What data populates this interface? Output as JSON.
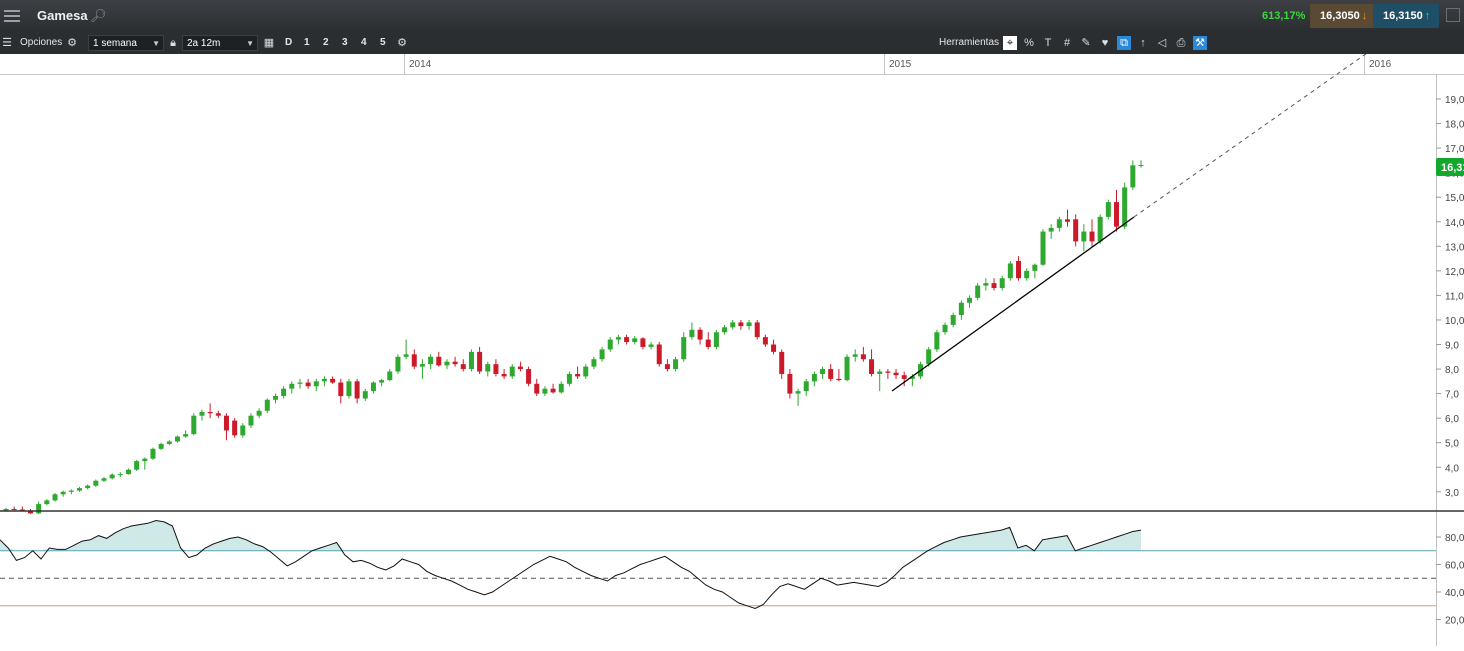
{
  "header": {
    "symbol": "Gamesa",
    "change_pct": "613,17%",
    "bid": "16,3050",
    "ask": "16,3150"
  },
  "toolbar": {
    "options_label": "Opciones",
    "interval": "1 semana",
    "range": "2a 12m",
    "periods": [
      "D",
      "1",
      "2",
      "3",
      "4",
      "5"
    ],
    "tools_label": "Herramientas",
    "icons": [
      "menu-icon",
      "gear-icon",
      "lock-icon",
      "calendar-icon",
      "settings-icon",
      "crosshair-icon",
      "percent-icon",
      "text-icon",
      "grid-icon",
      "pen-icon",
      "candle-icon",
      "compare-icon",
      "indicator-icon",
      "tag-icon",
      "print-icon",
      "tools-icon"
    ]
  },
  "colors": {
    "up": "#2ea82e",
    "down": "#cc1a2a",
    "rsi_fill": "#cfe8e8",
    "overbought_line": "#5ba3b5",
    "oversold_line": "#d59b74"
  },
  "chart_data": [
    {
      "type": "candlestick",
      "x_labels": [
        "2014",
        "2015",
        "2016"
      ],
      "y_ticks": [
        "19,0",
        "18,0",
        "17,0",
        "16,0",
        "15,0",
        "14,0",
        "13,0",
        "12,0",
        "11,0",
        "10,0",
        "9,0",
        "8,0",
        "7,0",
        "6,0",
        "5,0",
        "4,0",
        "3,0"
      ],
      "ylim": [
        2.5,
        19.6
      ],
      "last_price_label": "16,31",
      "candles": [
        {
          "o": 2.22,
          "h": 2.35,
          "l": 2.2,
          "c": 2.3
        },
        {
          "o": 2.3,
          "h": 2.4,
          "l": 2.25,
          "c": 2.28
        },
        {
          "o": 2.28,
          "h": 2.4,
          "l": 2.2,
          "c": 2.25
        },
        {
          "o": 2.2,
          "h": 2.3,
          "l": 2.1,
          "c": 2.12
        },
        {
          "o": 2.12,
          "h": 2.6,
          "l": 2.1,
          "c": 2.5
        },
        {
          "o": 2.5,
          "h": 2.7,
          "l": 2.45,
          "c": 2.65
        },
        {
          "o": 2.65,
          "h": 2.95,
          "l": 2.6,
          "c": 2.9
        },
        {
          "o": 2.9,
          "h": 3.05,
          "l": 2.8,
          "c": 3.0
        },
        {
          "o": 3.0,
          "h": 3.1,
          "l": 2.9,
          "c": 3.05
        },
        {
          "o": 3.05,
          "h": 3.2,
          "l": 3.0,
          "c": 3.15
        },
        {
          "o": 3.15,
          "h": 3.3,
          "l": 3.1,
          "c": 3.25
        },
        {
          "o": 3.25,
          "h": 3.5,
          "l": 3.2,
          "c": 3.45
        },
        {
          "o": 3.45,
          "h": 3.6,
          "l": 3.4,
          "c": 3.55
        },
        {
          "o": 3.55,
          "h": 3.75,
          "l": 3.5,
          "c": 3.7
        },
        {
          "o": 3.7,
          "h": 3.8,
          "l": 3.6,
          "c": 3.72
        },
        {
          "o": 3.72,
          "h": 3.95,
          "l": 3.7,
          "c": 3.9
        },
        {
          "o": 3.9,
          "h": 4.3,
          "l": 3.85,
          "c": 4.25
        },
        {
          "o": 4.25,
          "h": 4.4,
          "l": 3.9,
          "c": 4.35
        },
        {
          "o": 4.35,
          "h": 4.8,
          "l": 4.3,
          "c": 4.75
        },
        {
          "o": 4.75,
          "h": 5.0,
          "l": 4.7,
          "c": 4.95
        },
        {
          "o": 4.95,
          "h": 5.1,
          "l": 4.9,
          "c": 5.05
        },
        {
          "o": 5.05,
          "h": 5.3,
          "l": 5.0,
          "c": 5.25
        },
        {
          "o": 5.25,
          "h": 5.5,
          "l": 5.2,
          "c": 5.35
        },
        {
          "o": 5.35,
          "h": 6.2,
          "l": 5.3,
          "c": 6.1
        },
        {
          "o": 6.1,
          "h": 6.35,
          "l": 5.9,
          "c": 6.25
        },
        {
          "o": 6.25,
          "h": 6.6,
          "l": 6.0,
          "c": 6.2
        },
        {
          "o": 6.2,
          "h": 6.3,
          "l": 6.0,
          "c": 6.1
        },
        {
          "o": 6.1,
          "h": 6.2,
          "l": 5.1,
          "c": 5.5
        },
        {
          "o": 5.9,
          "h": 6.0,
          "l": 5.2,
          "c": 5.3
        },
        {
          "o": 5.3,
          "h": 5.8,
          "l": 5.2,
          "c": 5.7
        },
        {
          "o": 5.7,
          "h": 6.2,
          "l": 5.6,
          "c": 6.1
        },
        {
          "o": 6.1,
          "h": 6.4,
          "l": 6.0,
          "c": 6.3
        },
        {
          "o": 6.3,
          "h": 6.8,
          "l": 6.2,
          "c": 6.75
        },
        {
          "o": 6.75,
          "h": 7.0,
          "l": 6.6,
          "c": 6.9
        },
        {
          "o": 6.9,
          "h": 7.3,
          "l": 6.8,
          "c": 7.2
        },
        {
          "o": 7.2,
          "h": 7.5,
          "l": 7.0,
          "c": 7.4
        },
        {
          "o": 7.4,
          "h": 7.6,
          "l": 7.2,
          "c": 7.45
        },
        {
          "o": 7.45,
          "h": 7.6,
          "l": 7.2,
          "c": 7.3
        },
        {
          "o": 7.3,
          "h": 7.6,
          "l": 7.1,
          "c": 7.5
        },
        {
          "o": 7.5,
          "h": 7.7,
          "l": 7.3,
          "c": 7.6
        },
        {
          "o": 7.6,
          "h": 7.7,
          "l": 7.4,
          "c": 7.45
        },
        {
          "o": 7.45,
          "h": 7.6,
          "l": 6.6,
          "c": 6.9
        },
        {
          "o": 6.9,
          "h": 7.6,
          "l": 6.8,
          "c": 7.5
        },
        {
          "o": 7.5,
          "h": 7.6,
          "l": 6.6,
          "c": 6.8
        },
        {
          "o": 6.8,
          "h": 7.2,
          "l": 6.7,
          "c": 7.1
        },
        {
          "o": 7.1,
          "h": 7.5,
          "l": 7.0,
          "c": 7.45
        },
        {
          "o": 7.45,
          "h": 7.6,
          "l": 7.3,
          "c": 7.55
        },
        {
          "o": 7.55,
          "h": 8.0,
          "l": 7.5,
          "c": 7.9
        },
        {
          "o": 7.9,
          "h": 8.6,
          "l": 7.8,
          "c": 8.5
        },
        {
          "o": 8.5,
          "h": 9.2,
          "l": 8.4,
          "c": 8.6
        },
        {
          "o": 8.6,
          "h": 8.8,
          "l": 8.0,
          "c": 8.1
        },
        {
          "o": 8.1,
          "h": 8.4,
          "l": 7.6,
          "c": 8.2
        },
        {
          "o": 8.2,
          "h": 8.6,
          "l": 8.0,
          "c": 8.5
        },
        {
          "o": 8.5,
          "h": 8.7,
          "l": 8.1,
          "c": 8.15
        },
        {
          "o": 8.15,
          "h": 8.4,
          "l": 8.0,
          "c": 8.3
        },
        {
          "o": 8.3,
          "h": 8.5,
          "l": 8.1,
          "c": 8.2
        },
        {
          "o": 8.2,
          "h": 8.4,
          "l": 7.9,
          "c": 8.0
        },
        {
          "o": 8.0,
          "h": 8.8,
          "l": 7.9,
          "c": 8.7
        },
        {
          "o": 8.7,
          "h": 8.9,
          "l": 7.8,
          "c": 7.9
        },
        {
          "o": 7.9,
          "h": 8.3,
          "l": 7.7,
          "c": 8.2
        },
        {
          "o": 8.2,
          "h": 8.4,
          "l": 7.7,
          "c": 7.8
        },
        {
          "o": 7.8,
          "h": 8.0,
          "l": 7.6,
          "c": 7.7
        },
        {
          "o": 7.7,
          "h": 8.2,
          "l": 7.6,
          "c": 8.1
        },
        {
          "o": 8.1,
          "h": 8.3,
          "l": 7.9,
          "c": 8.0
        },
        {
          "o": 8.0,
          "h": 8.1,
          "l": 7.3,
          "c": 7.4
        },
        {
          "o": 7.4,
          "h": 7.6,
          "l": 6.9,
          "c": 7.0
        },
        {
          "o": 7.0,
          "h": 7.3,
          "l": 6.9,
          "c": 7.2
        },
        {
          "o": 7.2,
          "h": 7.4,
          "l": 7.0,
          "c": 7.05
        },
        {
          "o": 7.05,
          "h": 7.5,
          "l": 7.0,
          "c": 7.4
        },
        {
          "o": 7.4,
          "h": 7.9,
          "l": 7.3,
          "c": 7.8
        },
        {
          "o": 7.8,
          "h": 8.1,
          "l": 7.6,
          "c": 7.7
        },
        {
          "o": 7.7,
          "h": 8.2,
          "l": 7.6,
          "c": 8.1
        },
        {
          "o": 8.1,
          "h": 8.5,
          "l": 8.0,
          "c": 8.4
        },
        {
          "o": 8.4,
          "h": 8.9,
          "l": 8.3,
          "c": 8.8
        },
        {
          "o": 8.8,
          "h": 9.3,
          "l": 8.7,
          "c": 9.2
        },
        {
          "o": 9.2,
          "h": 9.4,
          "l": 9.0,
          "c": 9.3
        },
        {
          "o": 9.3,
          "h": 9.4,
          "l": 9.0,
          "c": 9.1
        },
        {
          "o": 9.1,
          "h": 9.35,
          "l": 9.0,
          "c": 9.25
        },
        {
          "o": 9.25,
          "h": 9.3,
          "l": 8.8,
          "c": 8.9
        },
        {
          "o": 8.9,
          "h": 9.1,
          "l": 8.8,
          "c": 9.0
        },
        {
          "o": 9.0,
          "h": 9.1,
          "l": 8.1,
          "c": 8.2
        },
        {
          "o": 8.2,
          "h": 8.4,
          "l": 7.9,
          "c": 8.0
        },
        {
          "o": 8.0,
          "h": 8.5,
          "l": 7.9,
          "c": 8.4
        },
        {
          "o": 8.4,
          "h": 9.5,
          "l": 8.3,
          "c": 9.3
        },
        {
          "o": 9.3,
          "h": 9.9,
          "l": 9.2,
          "c": 9.6
        },
        {
          "o": 9.6,
          "h": 9.7,
          "l": 9.0,
          "c": 9.2
        },
        {
          "o": 9.2,
          "h": 9.5,
          "l": 8.8,
          "c": 8.9
        },
        {
          "o": 8.9,
          "h": 9.6,
          "l": 8.8,
          "c": 9.5
        },
        {
          "o": 9.5,
          "h": 9.8,
          "l": 9.4,
          "c": 9.7
        },
        {
          "o": 9.7,
          "h": 10.0,
          "l": 9.6,
          "c": 9.9
        },
        {
          "o": 9.9,
          "h": 10.0,
          "l": 9.6,
          "c": 9.75
        },
        {
          "o": 9.75,
          "h": 10.0,
          "l": 9.6,
          "c": 9.9
        },
        {
          "o": 9.9,
          "h": 10.0,
          "l": 9.2,
          "c": 9.3
        },
        {
          "o": 9.3,
          "h": 9.4,
          "l": 8.9,
          "c": 9.0
        },
        {
          "o": 9.0,
          "h": 9.2,
          "l": 8.6,
          "c": 8.7
        },
        {
          "o": 8.7,
          "h": 8.8,
          "l": 7.6,
          "c": 7.8
        },
        {
          "o": 7.8,
          "h": 8.0,
          "l": 6.8,
          "c": 7.0
        },
        {
          "o": 7.0,
          "h": 7.2,
          "l": 6.5,
          "c": 7.1
        },
        {
          "o": 7.1,
          "h": 7.6,
          "l": 6.9,
          "c": 7.5
        },
        {
          "o": 7.5,
          "h": 7.9,
          "l": 7.3,
          "c": 7.8
        },
        {
          "o": 7.8,
          "h": 8.1,
          "l": 7.6,
          "c": 8.0
        },
        {
          "o": 8.0,
          "h": 8.2,
          "l": 7.5,
          "c": 7.6
        },
        {
          "o": 7.6,
          "h": 8.0,
          "l": 7.5,
          "c": 7.55
        },
        {
          "o": 7.55,
          "h": 8.6,
          "l": 7.5,
          "c": 8.5
        },
        {
          "o": 8.5,
          "h": 8.8,
          "l": 8.3,
          "c": 8.6
        },
        {
          "o": 8.6,
          "h": 8.9,
          "l": 8.3,
          "c": 8.4
        },
        {
          "o": 8.4,
          "h": 8.8,
          "l": 7.7,
          "c": 7.8
        },
        {
          "o": 7.8,
          "h": 8.0,
          "l": 7.1,
          "c": 7.9
        },
        {
          "o": 7.9,
          "h": 8.0,
          "l": 7.6,
          "c": 7.85
        },
        {
          "o": 7.85,
          "h": 8.0,
          "l": 7.6,
          "c": 7.75
        },
        {
          "o": 7.75,
          "h": 7.9,
          "l": 7.3,
          "c": 7.6
        },
        {
          "o": 7.6,
          "h": 7.8,
          "l": 7.3,
          "c": 7.7
        },
        {
          "o": 7.7,
          "h": 8.3,
          "l": 7.6,
          "c": 8.2
        },
        {
          "o": 8.2,
          "h": 8.9,
          "l": 8.1,
          "c": 8.8
        },
        {
          "o": 8.8,
          "h": 9.6,
          "l": 8.7,
          "c": 9.5
        },
        {
          "o": 9.5,
          "h": 9.9,
          "l": 9.4,
          "c": 9.8
        },
        {
          "o": 9.8,
          "h": 10.3,
          "l": 9.7,
          "c": 10.2
        },
        {
          "o": 10.2,
          "h": 10.8,
          "l": 10.0,
          "c": 10.7
        },
        {
          "o": 10.7,
          "h": 11.0,
          "l": 10.5,
          "c": 10.9
        },
        {
          "o": 10.9,
          "h": 11.5,
          "l": 10.8,
          "c": 11.4
        },
        {
          "o": 11.4,
          "h": 11.7,
          "l": 11.2,
          "c": 11.5
        },
        {
          "o": 11.5,
          "h": 11.7,
          "l": 11.2,
          "c": 11.3
        },
        {
          "o": 11.3,
          "h": 11.8,
          "l": 11.2,
          "c": 11.7
        },
        {
          "o": 11.7,
          "h": 12.4,
          "l": 11.6,
          "c": 12.3
        },
        {
          "o": 12.4,
          "h": 12.6,
          "l": 11.6,
          "c": 11.7
        },
        {
          "o": 11.7,
          "h": 12.1,
          "l": 11.6,
          "c": 12.0
        },
        {
          "o": 12.0,
          "h": 12.3,
          "l": 11.7,
          "c": 12.25
        },
        {
          "o": 12.25,
          "h": 13.7,
          "l": 12.2,
          "c": 13.6
        },
        {
          "o": 13.6,
          "h": 13.9,
          "l": 13.3,
          "c": 13.75
        },
        {
          "o": 13.75,
          "h": 14.2,
          "l": 13.6,
          "c": 14.1
        },
        {
          "o": 14.1,
          "h": 14.5,
          "l": 13.8,
          "c": 14.0
        },
        {
          "o": 14.1,
          "h": 14.3,
          "l": 13.0,
          "c": 13.2
        },
        {
          "o": 13.2,
          "h": 13.9,
          "l": 12.8,
          "c": 13.6
        },
        {
          "o": 13.6,
          "h": 14.1,
          "l": 13.0,
          "c": 13.2
        },
        {
          "o": 13.2,
          "h": 14.3,
          "l": 13.1,
          "c": 14.2
        },
        {
          "o": 14.2,
          "h": 14.9,
          "l": 14.1,
          "c": 14.8
        },
        {
          "o": 14.8,
          "h": 15.3,
          "l": 13.6,
          "c": 13.8
        },
        {
          "o": 13.8,
          "h": 15.6,
          "l": 13.7,
          "c": 15.4
        },
        {
          "o": 15.4,
          "h": 16.5,
          "l": 15.3,
          "c": 16.3
        },
        {
          "o": 16.3,
          "h": 16.5,
          "l": 16.2,
          "c": 16.31
        }
      ]
    },
    {
      "type": "line",
      "indicator": "RSI",
      "y_ticks": [
        "80,0",
        "60,0",
        "40,0",
        "20,0"
      ],
      "ylim": [
        10,
        98
      ],
      "overbought": 70,
      "oversold": 30,
      "midline": 50,
      "values": [
        78,
        72,
        63,
        65,
        70,
        64,
        72,
        71,
        71,
        74,
        77,
        78,
        81,
        79,
        83,
        86,
        88,
        89,
        90,
        92,
        91,
        88,
        72,
        65,
        67,
        72,
        75,
        77,
        79,
        80,
        78,
        75,
        73,
        69,
        64,
        59,
        62,
        66,
        70,
        72,
        74,
        76,
        67,
        62,
        63,
        61,
        58,
        56,
        59,
        64,
        62,
        60,
        55,
        52,
        50,
        48,
        45,
        42,
        40,
        38,
        40,
        44,
        48,
        52,
        56,
        60,
        63,
        66,
        64,
        62,
        58,
        55,
        52,
        50,
        48,
        52,
        54,
        57,
        60,
        62,
        64,
        66,
        62,
        58,
        55,
        50,
        45,
        42,
        40,
        36,
        32,
        30,
        28,
        31,
        38,
        44,
        46,
        44,
        42,
        46,
        50,
        48,
        45,
        46,
        47,
        46,
        45,
        44,
        47,
        52,
        58,
        62,
        66,
        70,
        73,
        76,
        78,
        80,
        81,
        82,
        83,
        84,
        85,
        87,
        72,
        74,
        70,
        78,
        79,
        80,
        81,
        70,
        72,
        74,
        76,
        78,
        80,
        82,
        84,
        85
      ]
    }
  ]
}
